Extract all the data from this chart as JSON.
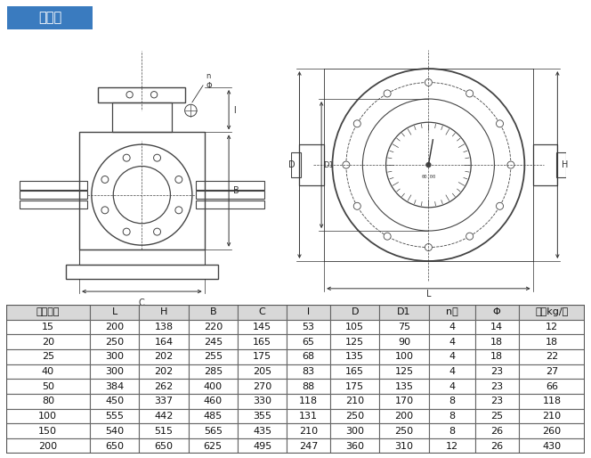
{
  "title": "铸钉型",
  "title_bg": "#3a7bbf",
  "title_color": "#ffffff",
  "header": [
    "公称通径",
    "L",
    "H",
    "B",
    "C",
    "l",
    "D",
    "D1",
    "n个",
    "Φ",
    "重量kg/台"
  ],
  "rows": [
    [
      "15",
      "200",
      "138",
      "220",
      "145",
      "53",
      "105",
      "75",
      "4",
      "14",
      "12"
    ],
    [
      "20",
      "250",
      "164",
      "245",
      "165",
      "65",
      "125",
      "90",
      "4",
      "18",
      "18"
    ],
    [
      "25",
      "300",
      "202",
      "255",
      "175",
      "68",
      "135",
      "100",
      "4",
      "18",
      "22"
    ],
    [
      "40",
      "300",
      "202",
      "285",
      "205",
      "83",
      "165",
      "125",
      "4",
      "23",
      "27"
    ],
    [
      "50",
      "384",
      "262",
      "400",
      "270",
      "88",
      "175",
      "135",
      "4",
      "23",
      "66"
    ],
    [
      "80",
      "450",
      "337",
      "460",
      "330",
      "118",
      "210",
      "170",
      "8",
      "23",
      "118"
    ],
    [
      "100",
      "555",
      "442",
      "485",
      "355",
      "131",
      "250",
      "200",
      "8",
      "25",
      "210"
    ],
    [
      "150",
      "540",
      "515",
      "565",
      "435",
      "210",
      "300",
      "250",
      "8",
      "26",
      "260"
    ],
    [
      "200",
      "650",
      "650",
      "625",
      "495",
      "247",
      "360",
      "310",
      "12",
      "26",
      "430"
    ]
  ],
  "fig_bg": "#ffffff",
  "line_color": "#444444",
  "dim_color": "#333333",
  "header_bg": "#d8d8d8",
  "row_bg": "#ffffff"
}
